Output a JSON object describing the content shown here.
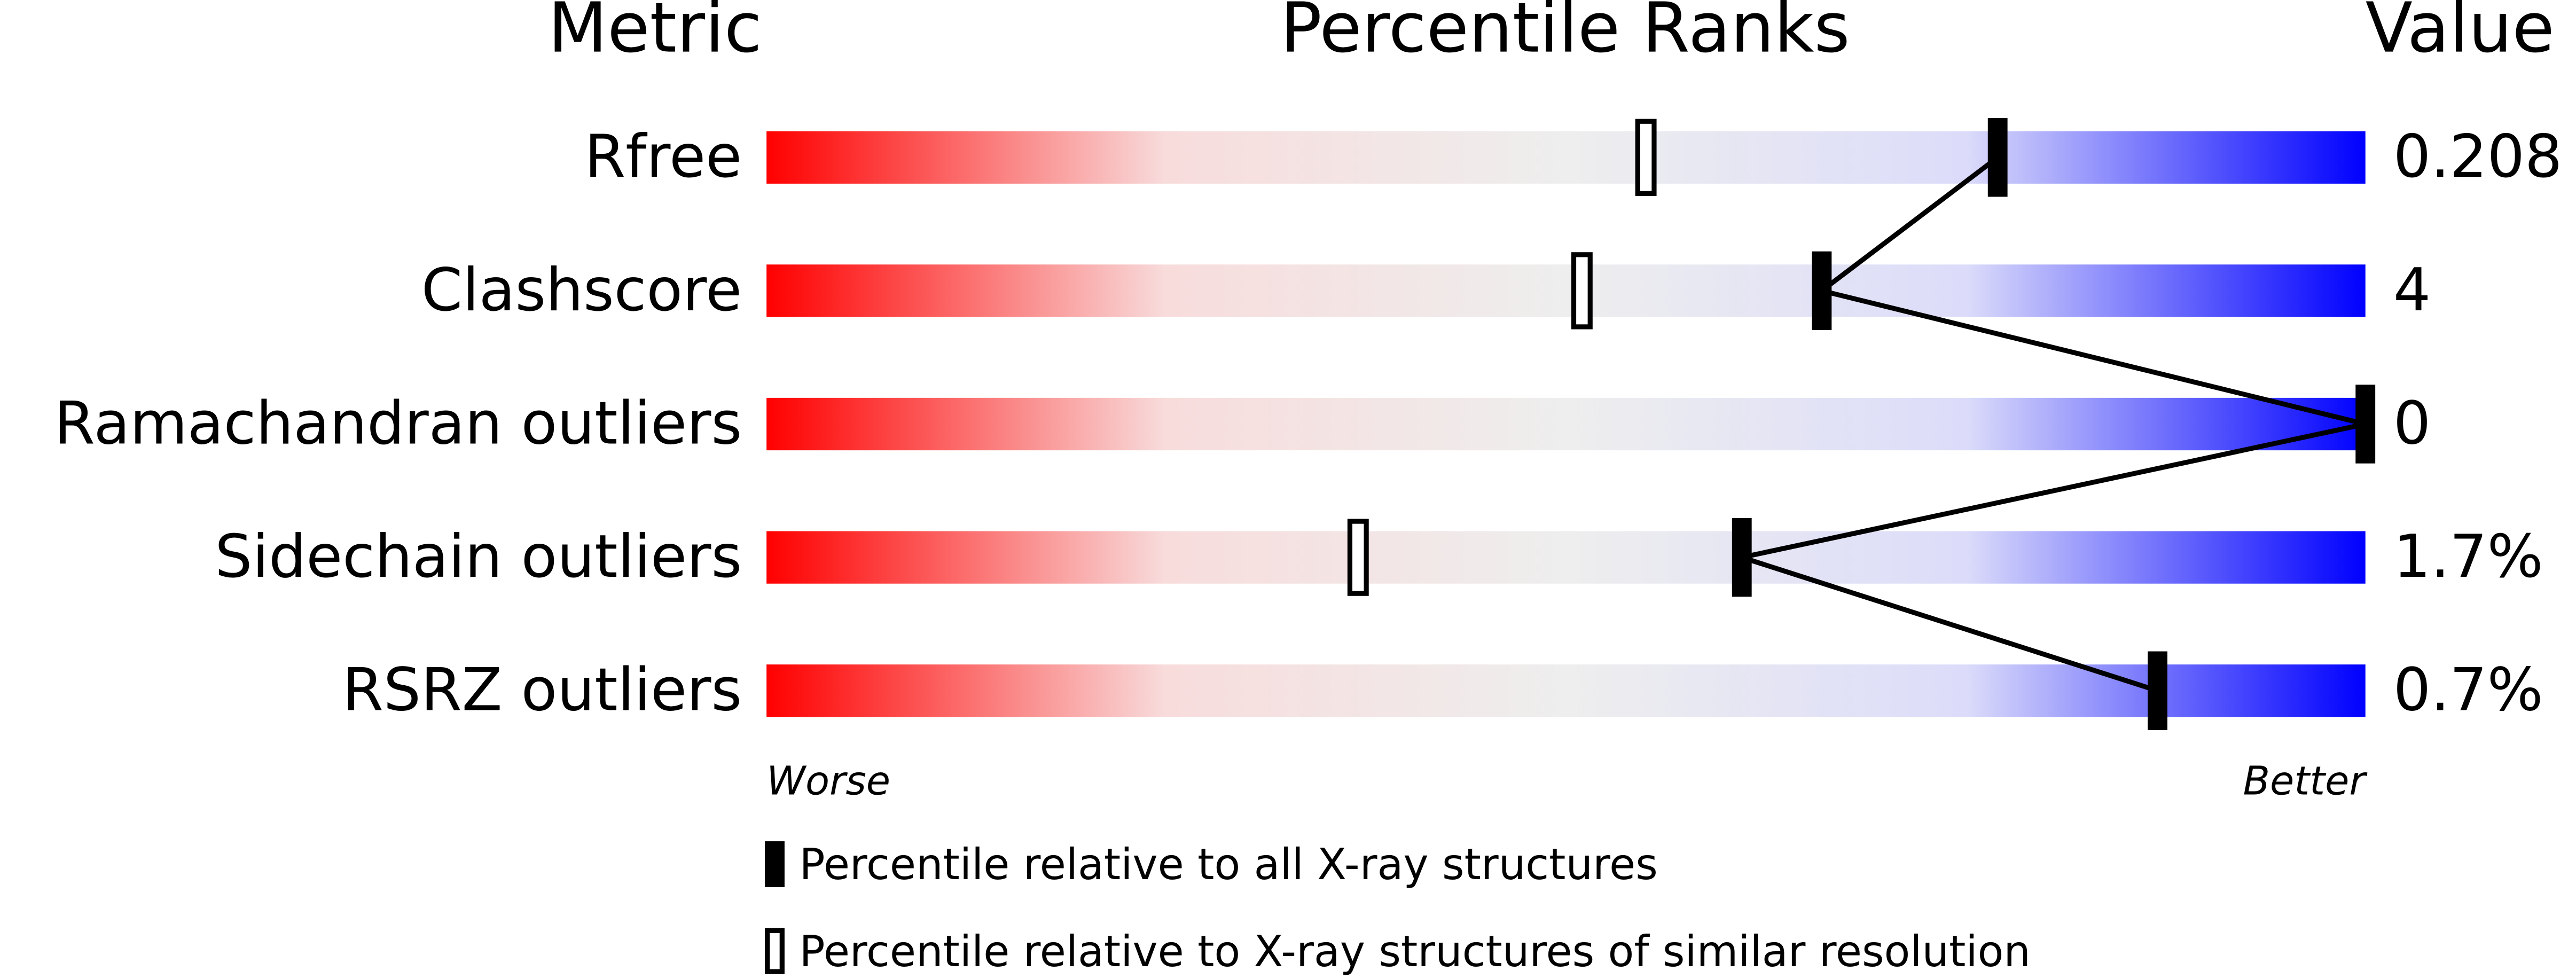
{
  "chart_data": {
    "type": "percentile",
    "header": {
      "metric": "Metric",
      "ranks": "Percentile Ranks",
      "value": "Value"
    },
    "categories": [
      "Rfree",
      "Clashscore",
      "Ramachandran outliers",
      "Sidechain outliers",
      "RSRZ outliers"
    ],
    "metric_values": [
      "0.208",
      "4",
      "0",
      "1.7%",
      "0.7%"
    ],
    "xlim": [
      0,
      100
    ],
    "axis_labels": {
      "low": "Worse",
      "high": "Better"
    },
    "series": [
      {
        "name": "Percentile relative to all X-ray structures",
        "color": "#000000",
        "filled": true,
        "values": [
          77,
          66,
          100,
          61,
          87
        ]
      },
      {
        "name": "Percentile relative to X-ray structures of similar resolution",
        "color": "#000000",
        "filled": false,
        "values": [
          55,
          51,
          null,
          37,
          null
        ]
      }
    ],
    "gradient": [
      "#ff0000",
      "#f8dcdc",
      "#eeeeee",
      "#dcdcfa",
      "#0000ff"
    ]
  }
}
